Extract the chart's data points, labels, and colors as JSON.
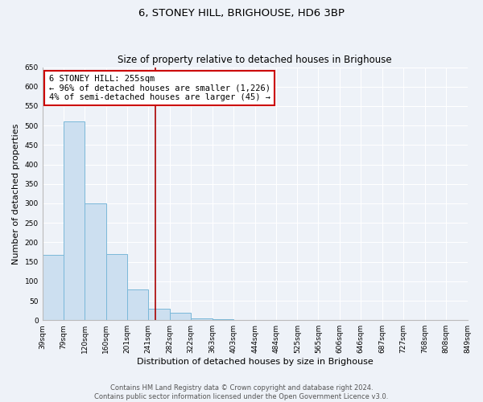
{
  "title": "6, STONEY HILL, BRIGHOUSE, HD6 3BP",
  "subtitle": "Size of property relative to detached houses in Brighouse",
  "xlabel": "Distribution of detached houses by size in Brighouse",
  "ylabel": "Number of detached properties",
  "bar_edges": [
    39,
    79,
    120,
    160,
    201,
    241,
    282,
    322,
    363,
    403,
    444,
    484,
    525,
    565,
    606,
    646,
    687,
    727,
    768,
    808,
    849
  ],
  "bar_heights": [
    167,
    510,
    300,
    170,
    79,
    30,
    20,
    5,
    2,
    0,
    0,
    0,
    0,
    0,
    0,
    0,
    0,
    0,
    0,
    1
  ],
  "tick_labels": [
    "39sqm",
    "79sqm",
    "120sqm",
    "160sqm",
    "201sqm",
    "241sqm",
    "282sqm",
    "322sqm",
    "363sqm",
    "403sqm",
    "444sqm",
    "484sqm",
    "525sqm",
    "565sqm",
    "606sqm",
    "646sqm",
    "687sqm",
    "727sqm",
    "768sqm",
    "808sqm",
    "849sqm"
  ],
  "bar_color": "#ccdff0",
  "bar_edge_color": "#7ab8d9",
  "property_line_x": 255,
  "property_line_color": "#aa0000",
  "annotation_box_edge_color": "#cc0000",
  "annotation_line1": "6 STONEY HILL: 255sqm",
  "annotation_line2": "← 96% of detached houses are smaller (1,226)",
  "annotation_line3": "4% of semi-detached houses are larger (45) →",
  "ylim": [
    0,
    650
  ],
  "yticks": [
    0,
    50,
    100,
    150,
    200,
    250,
    300,
    350,
    400,
    450,
    500,
    550,
    600,
    650
  ],
  "footer_line1": "Contains HM Land Registry data © Crown copyright and database right 2024.",
  "footer_line2": "Contains public sector information licensed under the Open Government Licence v3.0.",
  "bg_color": "#eef2f8",
  "title_fontsize": 9.5,
  "subtitle_fontsize": 8.5,
  "axis_label_fontsize": 8,
  "tick_fontsize": 6.5,
  "annotation_fontsize": 7.5,
  "footer_fontsize": 6
}
